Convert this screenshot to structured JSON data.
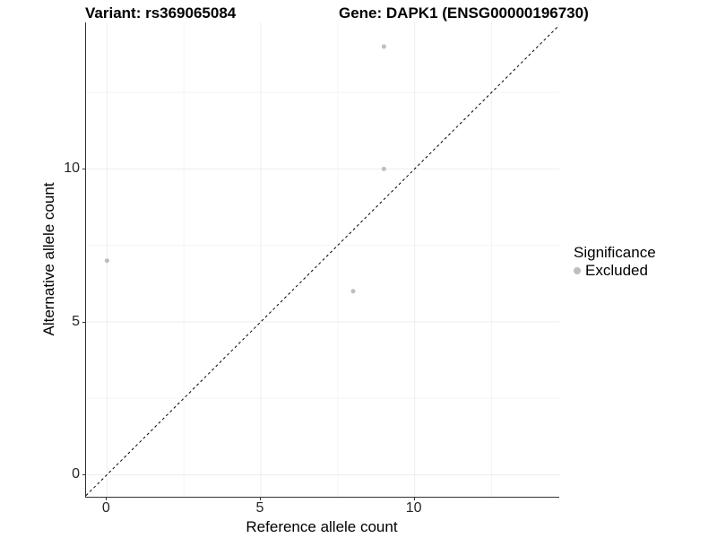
{
  "title": {
    "variant": "Variant: rs369065084",
    "gene": "Gene: DAPK1 (ENSG00000196730)"
  },
  "legend": {
    "title": "Significance",
    "entries": [
      {
        "label": "Excluded",
        "color": "#bebebe"
      }
    ]
  },
  "colors": {
    "point": "#bebebe",
    "grid_major": "#ededed",
    "grid_minor": "#f4f4f4",
    "axis_line": "#333333",
    "reference_line": "#000000",
    "tick_text": "#262626"
  },
  "chart_data": {
    "type": "scatter",
    "title": "Variant: rs369065084   Gene: DAPK1 (ENSG00000196730)",
    "xlabel": "Reference allele count",
    "ylabel": "Alternative allele count",
    "xlim": [
      -0.68,
      14.7
    ],
    "ylim": [
      -0.72,
      14.79
    ],
    "x_ticks": [
      0,
      5,
      10
    ],
    "y_ticks": [
      0,
      5,
      10
    ],
    "x_minor_ticks": [
      2.5,
      7.5,
      12.5
    ],
    "y_minor_ticks": [
      2.5,
      7.5,
      12.5
    ],
    "grid": true,
    "legend_position": "right",
    "reference_line": {
      "kind": "identity",
      "style": "dashed",
      "color": "#000000"
    },
    "series": [
      {
        "name": "Excluded",
        "color": "#bebebe",
        "points": [
          {
            "x": 0,
            "y": 7
          },
          {
            "x": 8,
            "y": 6
          },
          {
            "x": 9,
            "y": 10
          },
          {
            "x": 9,
            "y": 14
          }
        ]
      }
    ]
  }
}
